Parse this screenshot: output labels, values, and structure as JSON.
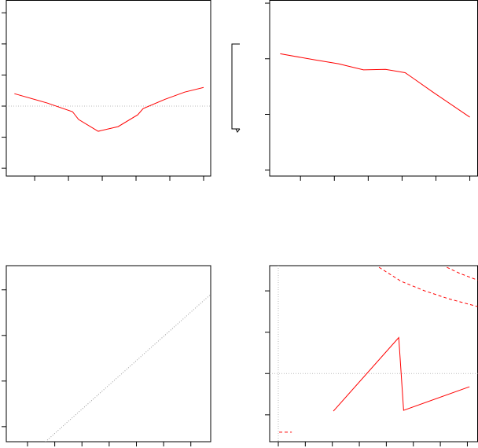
{
  "chart_data": [
    {
      "type": "line",
      "xlim": [
        0.16,
        6.21
      ],
      "ylim": [
        -0.25,
        5.4
      ],
      "xticks": [
        1,
        2,
        3,
        4,
        5,
        6
      ],
      "yticks": [
        0,
        1,
        2,
        3,
        4,
        5
      ],
      "hlines": [
        2
      ],
      "series": [
        {
          "color": "#ff0000",
          "dash": "solid",
          "x": [
            0.4,
            1.37,
            2.12,
            2.3,
            2.88,
            3.47,
            4.05,
            4.21,
            4.86,
            5.44,
            6.0
          ],
          "values": [
            2.4,
            2.1,
            1.82,
            1.57,
            1.19,
            1.34,
            1.72,
            1.92,
            2.22,
            2.45,
            2.6
          ]
        }
      ]
    },
    {
      "type": "line",
      "xlim": [
        0.09,
        6.23
      ],
      "ylim": [
        -0.11,
        3.05
      ],
      "xticks": [
        1,
        2,
        3,
        4,
        5,
        6
      ],
      "yticks": [
        0,
        1,
        2,
        3
      ],
      "series": [
        {
          "color": "#ff0000",
          "dash": "solid",
          "x": [
            0.4,
            1.42,
            2.12,
            2.86,
            3.51,
            4.09,
            4.28,
            4.91,
            6.0
          ],
          "values": [
            2.09,
            1.98,
            1.91,
            1.8,
            1.81,
            1.75,
            1.67,
            1.4,
            0.95
          ]
        }
      ]
    },
    {
      "type": "line",
      "xlim": [
        0.22,
        7.73
      ],
      "ylim": [
        -0.33,
        3.53
      ],
      "xticks": [
        1,
        2,
        3,
        4,
        5,
        6,
        7
      ],
      "yticks": [
        0,
        1,
        2,
        3
      ],
      "series": [
        {
          "color": "#999999",
          "dash": "dotted",
          "x": [
            1.66,
            7.73
          ],
          "values": [
            -0.33,
            2.9
          ]
        }
      ]
    },
    {
      "type": "line",
      "xlim": [
        0.68,
        8.38
      ],
      "ylim": [
        -0.65,
        3.61
      ],
      "xticks": [
        1,
        2,
        3,
        4,
        5,
        6,
        7,
        8
      ],
      "yticks": [
        0,
        1,
        2,
        3
      ],
      "hlines": [
        1
      ],
      "vlines": [
        1
      ],
      "series": [
        {
          "color": "#ff0000",
          "dash": "solid",
          "x": [
            3.04,
            5.46,
            5.64,
            8.08
          ],
          "values": [
            0.09,
            1.87,
            0.11,
            0.68
          ]
        },
        {
          "color": "#ff0000",
          "dash": "dashed",
          "x": [
            4.73,
            5.55,
            6.42,
            7.3,
            8.38
          ],
          "values": [
            3.57,
            3.23,
            3.0,
            2.81,
            2.62
          ]
        },
        {
          "color": "#ff0000",
          "dash": "dashed",
          "x": [
            7.24,
            7.73,
            8.38
          ],
          "values": [
            3.57,
            3.42,
            3.26
          ]
        },
        {
          "color": "#ff0000",
          "dash": "dashed",
          "x": [
            1.03,
            1.5
          ],
          "values": [
            -0.42,
            -0.42
          ]
        }
      ]
    }
  ]
}
